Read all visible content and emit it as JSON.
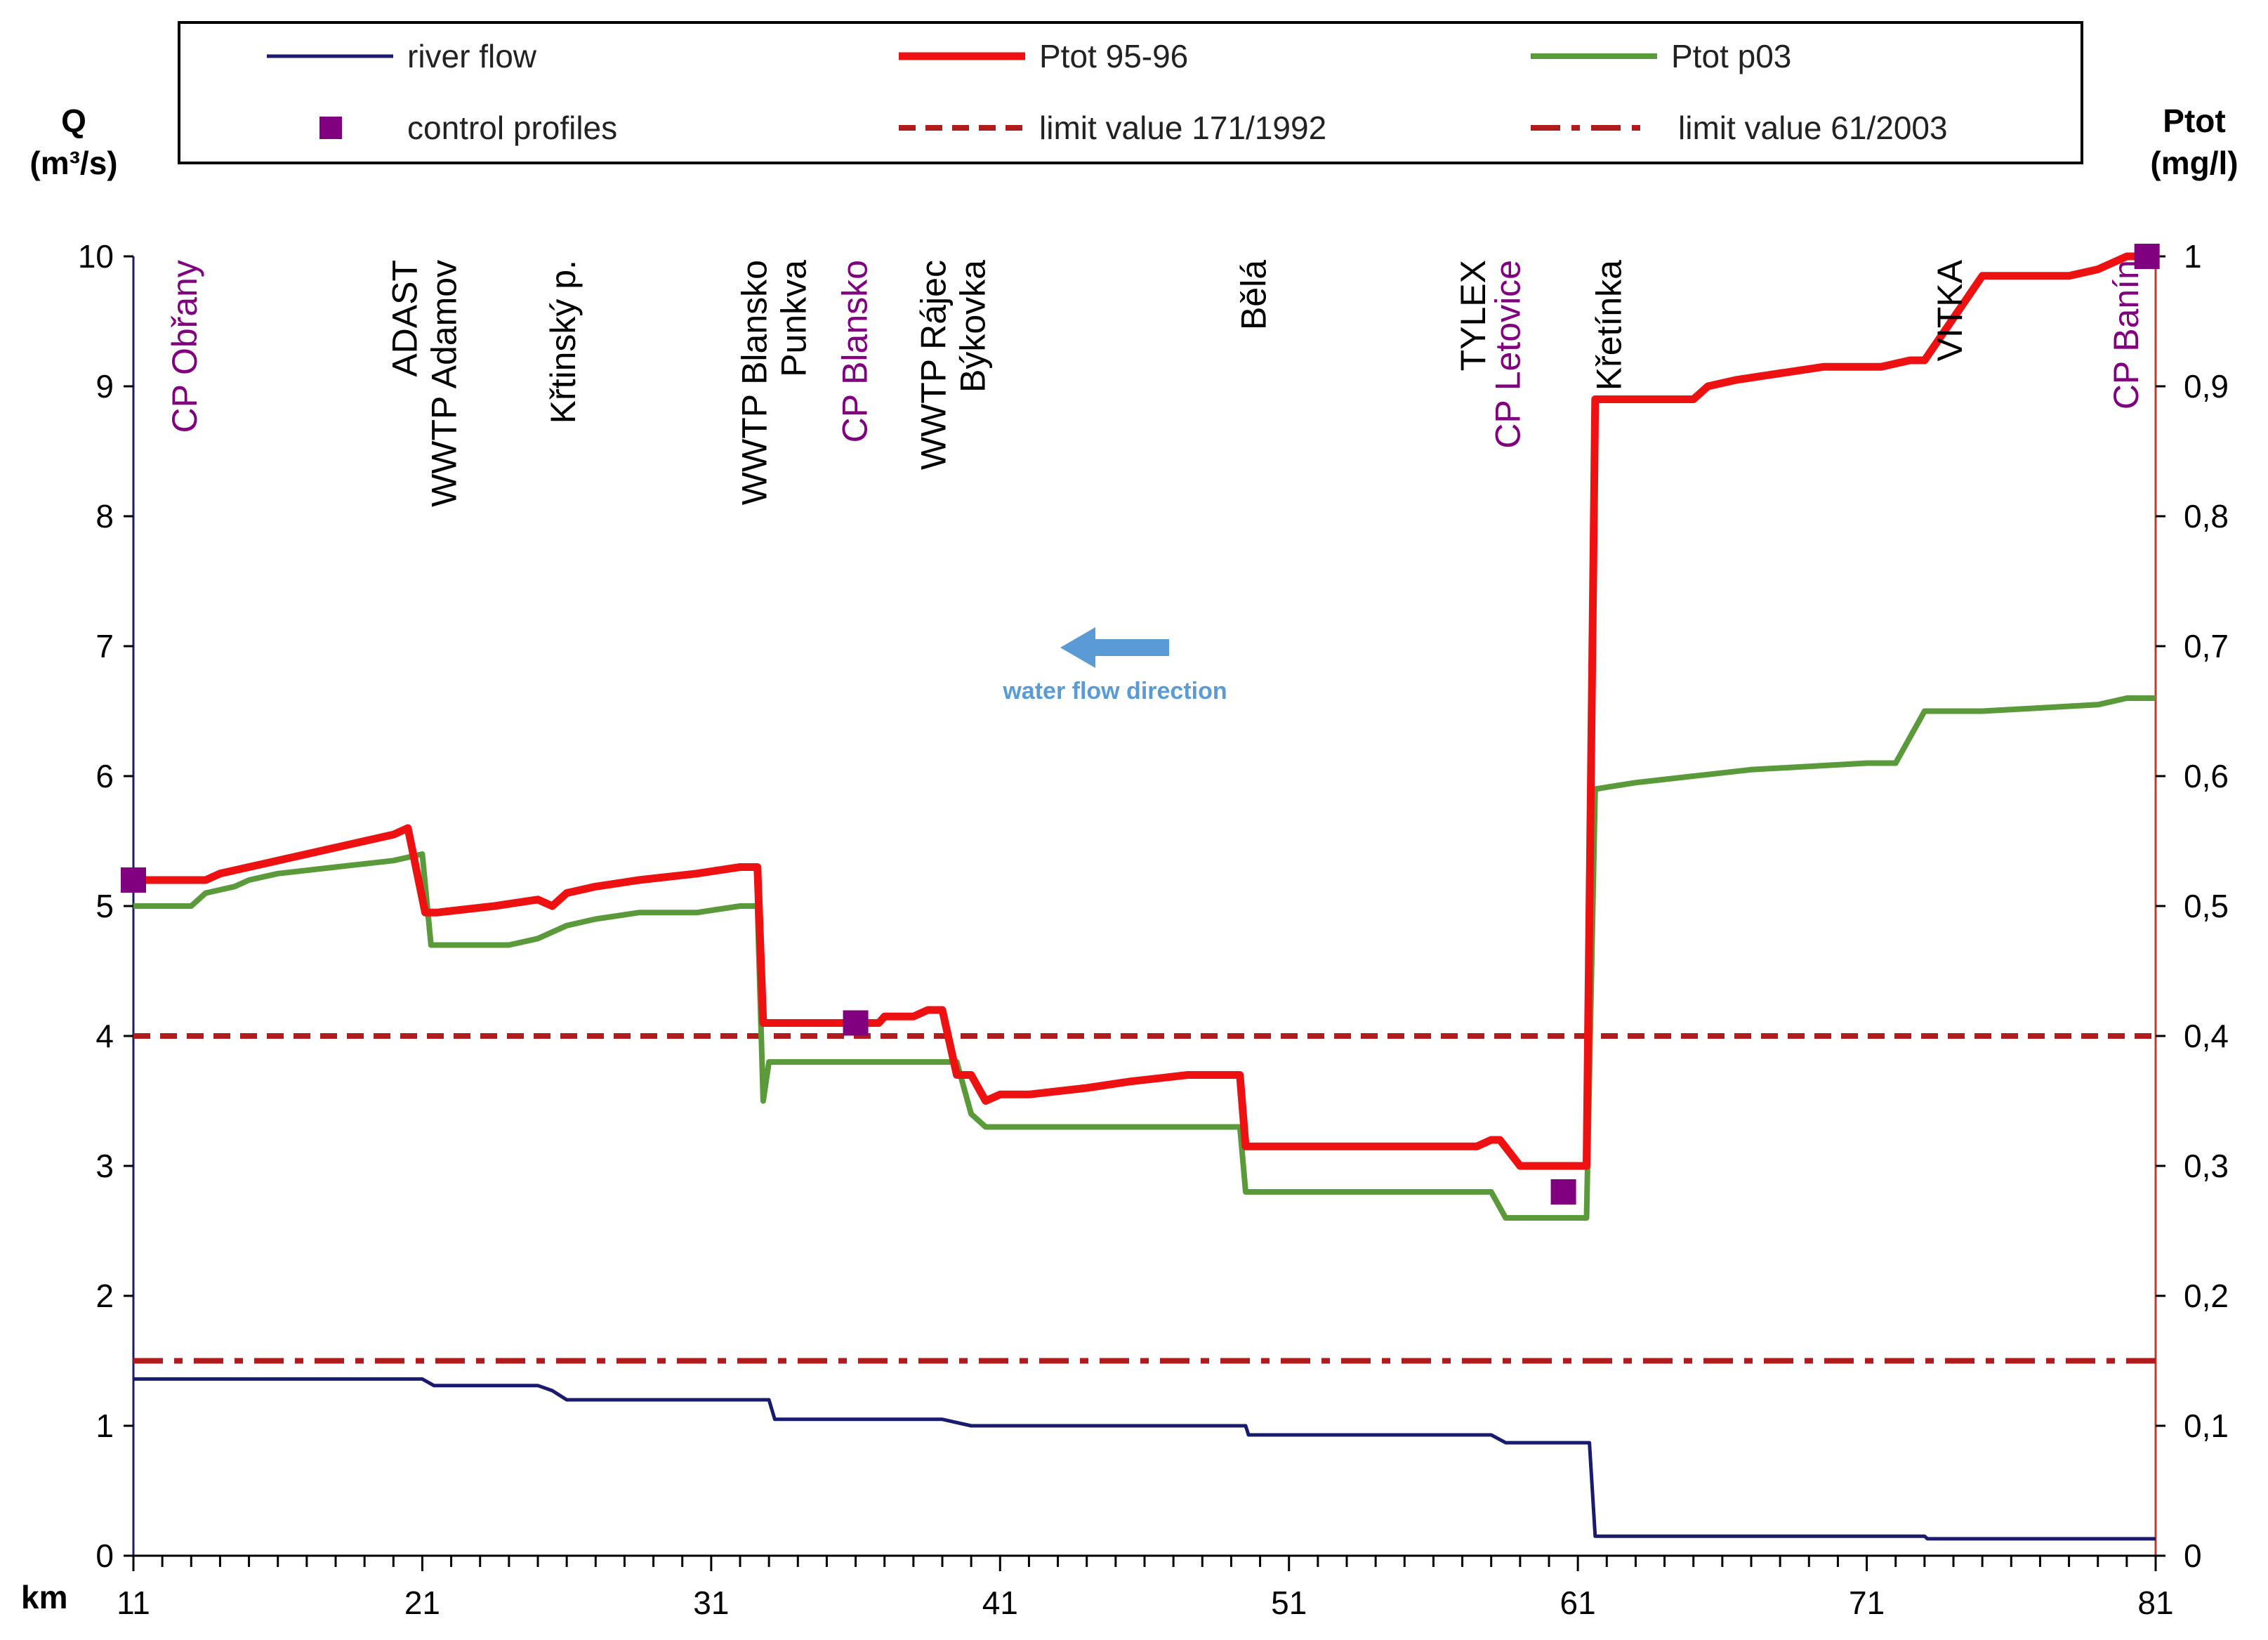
{
  "chart_data": {
    "type": "line",
    "x_axis": {
      "label": "km",
      "min": 11,
      "max": 81,
      "ticks": [
        11,
        21,
        31,
        41,
        51,
        61,
        71,
        81
      ]
    },
    "y_left": {
      "label_line1": "Q",
      "label_line2": "(m³/s)",
      "min": 0,
      "max": 10,
      "ticks": [
        0,
        1,
        2,
        3,
        4,
        5,
        6,
        7,
        8,
        9,
        10
      ]
    },
    "y_right": {
      "label_line1": "Ptot",
      "label_line2": "(mg/l)",
      "min": 0,
      "max": 1,
      "ticks": [
        "0",
        "0,1",
        "0,2",
        "0,3",
        "0,4",
        "0,5",
        "0,6",
        "0,7",
        "0,8",
        "0,9",
        "1"
      ]
    },
    "legend": {
      "river_flow": "river flow",
      "ptot_9596": "Ptot 95-96",
      "ptot_p03": "Ptot p03",
      "control_profiles": "control profiles",
      "limit_1992": "limit value 171/1992",
      "limit_2003": "limit value 61/2003"
    },
    "colors": {
      "river_flow": "#1a1a6e",
      "ptot_9596": "#ee1111",
      "ptot_p03": "#5a9a3a",
      "control_profiles": "#800080",
      "limit": "#b01c1c",
      "flow_arrow": "#5b9bd5",
      "right_axis": "#c0392b"
    },
    "series": [
      {
        "name": "river flow",
        "axis": "left",
        "x": [
          11,
          21,
          21.4,
          25,
          25.5,
          26,
          33,
          33.2,
          39,
          40,
          49.5,
          49.6,
          58,
          58.5,
          61.4,
          61.6,
          73,
          73.1,
          81
        ],
        "y": [
          1.36,
          1.36,
          1.31,
          1.31,
          1.27,
          1.2,
          1.2,
          1.05,
          1.05,
          1.0,
          1.0,
          0.93,
          0.93,
          0.87,
          0.87,
          0.15,
          0.15,
          0.13,
          0.13
        ]
      },
      {
        "name": "Ptot 95-96",
        "axis": "right",
        "x": [
          11,
          13.5,
          14,
          15,
          16,
          17,
          18,
          19,
          20,
          20.5,
          21.1,
          21.5,
          23.5,
          25,
          25.5,
          26,
          27,
          28.5,
          30.5,
          32,
          32.6,
          32.8,
          36,
          36.8,
          37,
          38,
          38.5,
          39,
          39.5,
          40,
          40.5,
          41,
          42,
          44,
          45.5,
          47.5,
          49.3,
          49.5,
          57.5,
          58,
          58.3,
          59,
          61,
          61.3,
          61.6,
          65,
          65.5,
          66.5,
          68,
          69.5,
          71.5,
          72.5,
          73,
          75,
          78,
          79,
          80,
          81
        ],
        "y": [
          0.52,
          0.52,
          0.525,
          0.53,
          0.535,
          0.54,
          0.545,
          0.55,
          0.555,
          0.56,
          0.495,
          0.495,
          0.5,
          0.505,
          0.5,
          0.51,
          0.515,
          0.52,
          0.525,
          0.53,
          0.53,
          0.41,
          0.41,
          0.41,
          0.415,
          0.415,
          0.42,
          0.42,
          0.37,
          0.37,
          0.35,
          0.355,
          0.355,
          0.36,
          0.365,
          0.37,
          0.37,
          0.315,
          0.315,
          0.32,
          0.32,
          0.3,
          0.3,
          0.3,
          0.89,
          0.89,
          0.9,
          0.905,
          0.91,
          0.915,
          0.915,
          0.92,
          0.92,
          0.985,
          0.985,
          0.99,
          1.0,
          1.0
        ]
      },
      {
        "name": "Ptot p03",
        "axis": "right",
        "x": [
          11,
          13,
          13.5,
          14.5,
          15,
          16,
          18,
          20,
          21,
          21.3,
          22,
          24,
          25,
          26,
          27,
          28.5,
          30.5,
          32,
          32.6,
          32.8,
          33,
          33.2,
          39.5,
          40,
          40.5,
          41,
          49.3,
          49.5,
          57,
          58,
          58.5,
          61.3,
          61.6,
          63,
          65,
          67,
          71,
          72,
          73,
          75,
          79,
          80,
          81
        ],
        "y": [
          0.5,
          0.5,
          0.51,
          0.515,
          0.52,
          0.525,
          0.53,
          0.535,
          0.54,
          0.47,
          0.47,
          0.47,
          0.475,
          0.485,
          0.49,
          0.495,
          0.495,
          0.5,
          0.5,
          0.35,
          0.38,
          0.38,
          0.38,
          0.34,
          0.33,
          0.33,
          0.33,
          0.28,
          0.28,
          0.28,
          0.26,
          0.26,
          0.59,
          0.595,
          0.6,
          0.605,
          0.61,
          0.61,
          0.65,
          0.65,
          0.655,
          0.66,
          0.66
        ]
      }
    ],
    "limits": [
      {
        "name": "limit value 171/1992",
        "axis": "right",
        "value": 0.4,
        "style": "dashed"
      },
      {
        "name": "limit value 61/2003",
        "axis": "right",
        "value": 0.15,
        "style": "dash-dot"
      }
    ],
    "control_profiles": [
      {
        "x": 11,
        "y": 0.52
      },
      {
        "x": 36,
        "y": 0.41
      },
      {
        "x": 60.5,
        "y": 0.28
      },
      {
        "x": 80.7,
        "y": 1.0
      }
    ],
    "location_labels": [
      {
        "lines": [
          "CP Obřany"
        ],
        "km": 12.8,
        "control": true
      },
      {
        "lines": [
          "ADAST",
          "WWTP Adamov"
        ],
        "km": 21.1,
        "control": false
      },
      {
        "lines": [
          "Křtinský p."
        ],
        "km": 25.9,
        "control": false
      },
      {
        "lines": [
          "WWTP Blansko",
          "Punkva"
        ],
        "km": 33.2,
        "control": false
      },
      {
        "lines": [
          "CP Blansko"
        ],
        "km": 36.0,
        "control": true
      },
      {
        "lines": [
          "WWTP Rájec",
          "Býkovka"
        ],
        "km": 39.4,
        "control": false
      },
      {
        "lines": [
          "Bělá"
        ],
        "km": 49.8,
        "control": false
      },
      {
        "lines": [
          "TYLEX"
        ],
        "km": 57.4,
        "control": false
      },
      {
        "lines": [
          "CP Letovice"
        ],
        "km": 58.6,
        "control": true
      },
      {
        "lines": [
          "Křetínka"
        ],
        "km": 62.1,
        "control": false
      },
      {
        "lines": [
          "VITKA"
        ],
        "km": 73.9,
        "control": false
      },
      {
        "lines": [
          "CP Banín"
        ],
        "km": 80.0,
        "control": true
      }
    ],
    "annotation": {
      "text": "water flow direction",
      "direction": "left"
    }
  }
}
